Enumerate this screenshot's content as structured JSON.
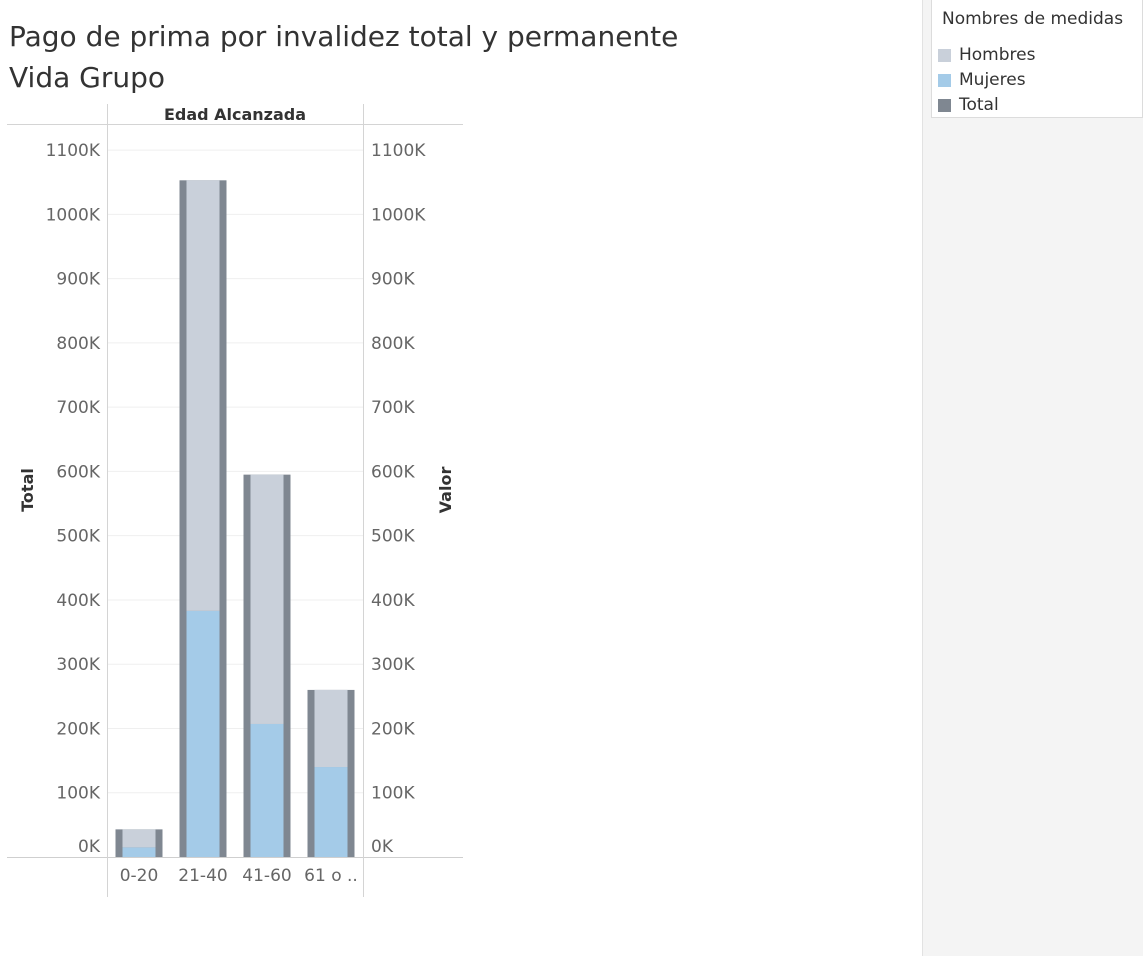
{
  "title_lines": [
    "Pago de prima por invalidez total y permanente",
    "Vida Grupo"
  ],
  "legend": {
    "title": "Nombres de medidas",
    "items": [
      {
        "label": "Hombres",
        "color": "#c9d0da"
      },
      {
        "label": "Mujeres",
        "color": "#a4cbe8"
      },
      {
        "label": "Total",
        "color": "#7f8791"
      }
    ]
  },
  "chart_data": {
    "type": "bar",
    "column_header": "Edad Alcanzada",
    "categories": [
      "0-20",
      "21-40",
      "41-60",
      "61 o .."
    ],
    "left_axis_label": "Total",
    "right_axis_label": "Valor",
    "y_ticks": [
      "0K",
      "100K",
      "200K",
      "300K",
      "400K",
      "500K",
      "600K",
      "700K",
      "800K",
      "900K",
      "1000K",
      "1100K"
    ],
    "ylim": [
      0,
      1100000
    ],
    "series": [
      {
        "name": "Total",
        "values": [
          43000,
          1053000,
          595000,
          260000
        ],
        "color": "#7f8791"
      },
      {
        "name": "Hombres",
        "values": [
          28000,
          670000,
          388000,
          120000
        ],
        "color": "#c9d0da"
      },
      {
        "name": "Mujeres",
        "values": [
          15000,
          383000,
          207000,
          140000
        ],
        "color": "#a4cbe8"
      }
    ],
    "stacked_series": [
      "Mujeres",
      "Hombres"
    ],
    "grid": true
  }
}
